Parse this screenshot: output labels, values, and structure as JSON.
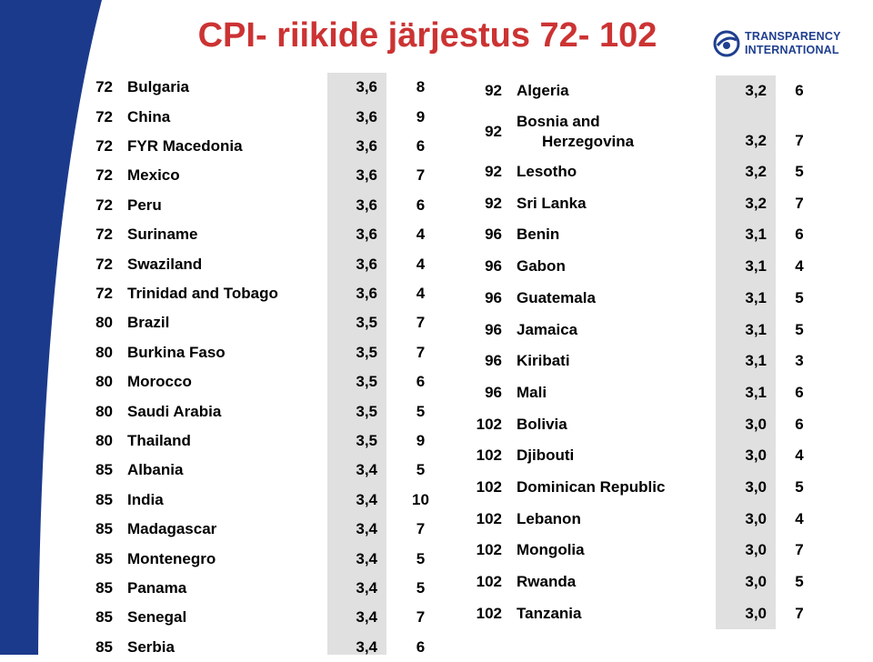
{
  "header": {
    "title": "CPI- riikide järjestus 72- 102",
    "logo": [
      "TRANSPARENCY",
      "INTERNATIONAL"
    ]
  },
  "left_table": {
    "rows": [
      [
        "72",
        "Bulgaria",
        "3,6",
        "8"
      ],
      [
        "72",
        "China",
        "3,6",
        "9"
      ],
      [
        "72",
        "FYR Macedonia",
        "3,6",
        "6"
      ],
      [
        "72",
        "Mexico",
        "3,6",
        "7"
      ],
      [
        "72",
        "Peru",
        "3,6",
        "6"
      ],
      [
        "72",
        "Suriname",
        "3,6",
        "4"
      ],
      [
        "72",
        "Swaziland",
        "3,6",
        "4"
      ],
      [
        "72",
        "Trinidad and Tobago",
        "3,6",
        "4"
      ],
      [
        "80",
        "Brazil",
        "3,5",
        "7"
      ],
      [
        "80",
        "Burkina Faso",
        "3,5",
        "7"
      ],
      [
        "80",
        "Morocco",
        "3,5",
        "6"
      ],
      [
        "80",
        "Saudi Arabia",
        "3,5",
        "5"
      ],
      [
        "80",
        "Thailand",
        "3,5",
        "9"
      ],
      [
        "85",
        "Albania",
        "3,4",
        "5"
      ],
      [
        "85",
        "India",
        "3,4",
        "10"
      ],
      [
        "85",
        "Madagascar",
        "3,4",
        "7"
      ],
      [
        "85",
        "Montenegro",
        "3,4",
        "5"
      ],
      [
        "85",
        "Panama",
        "3,4",
        "5"
      ],
      [
        "85",
        "Senegal",
        "3,4",
        "7"
      ],
      [
        "85",
        "Serbia",
        "3,4",
        "6"
      ]
    ]
  },
  "right_table": {
    "rows": [
      [
        "92",
        "Algeria",
        "3,2",
        "6"
      ],
      [
        "92",
        "Bosnia and Herzegovina",
        "3,2",
        "7"
      ],
      [
        "92",
        "Lesotho",
        "3,2",
        "5"
      ],
      [
        "92",
        "Sri Lanka",
        "3,2",
        "7"
      ],
      [
        "96",
        "Benin",
        "3,1",
        "6"
      ],
      [
        "96",
        "Gabon",
        "3,1",
        "4"
      ],
      [
        "96",
        "Guatemala",
        "3,1",
        "5"
      ],
      [
        "96",
        "Jamaica",
        "3,1",
        "5"
      ],
      [
        "96",
        "Kiribati",
        "3,1",
        "3"
      ],
      [
        "96",
        "Mali",
        "3,1",
        "6"
      ],
      [
        "102",
        "Bolivia",
        "3,0",
        "6"
      ],
      [
        "102",
        "Djibouti",
        "3,0",
        "4"
      ],
      [
        "102",
        "Dominican Republic",
        "3,0",
        "5"
      ],
      [
        "102",
        "Lebanon",
        "3,0",
        "4"
      ],
      [
        "102",
        "Mongolia",
        "3,0",
        "7"
      ],
      [
        "102",
        "Rwanda",
        "3,0",
        "5"
      ],
      [
        "102",
        "Tanzania",
        "3,0",
        "7"
      ]
    ]
  }
}
